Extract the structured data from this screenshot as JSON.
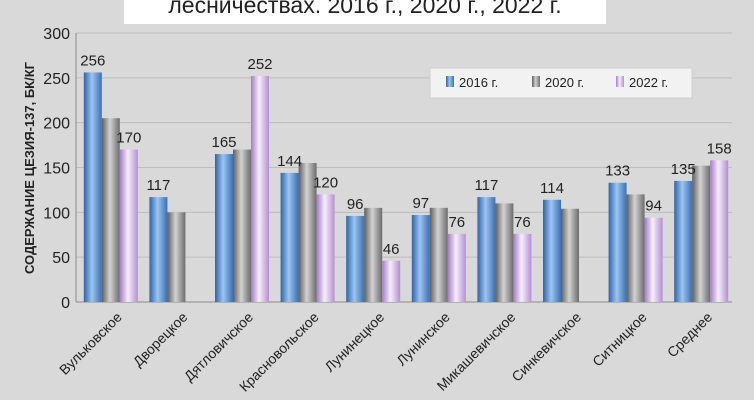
{
  "chart_data": {
    "type": "bar",
    "title": "лесничествах. 2016 г., 2020 г., 2022 г.",
    "ylabel": "СОДЕРЖАНИЕ ЦЕЗИЯ-137, БК/КГ",
    "xlabel": "",
    "ylim": [
      0,
      300
    ],
    "yticks": [
      0,
      50,
      100,
      150,
      200,
      250,
      300
    ],
    "grid": true,
    "legend_position": "top-right",
    "categories": [
      "Вульковское",
      "Дворецкое",
      "Дятловичское",
      "Красновольское",
      "Лунинецкое",
      "Лунинское",
      "Микашевичское",
      "Синкевичское",
      "Ситницкое",
      "Среднее"
    ],
    "series": [
      {
        "name": "2016 г.",
        "color": "#4f86c6",
        "values": [
          256,
          117,
          165,
          144,
          96,
          97,
          117,
          114,
          133,
          135
        ],
        "labels": [
          "256",
          "117",
          "165",
          "144",
          "96",
          "97",
          "117",
          "114",
          "133",
          "135"
        ]
      },
      {
        "name": "2020 г.",
        "color": "#8c8c8c",
        "values": [
          205,
          100,
          170,
          155,
          105,
          105,
          110,
          104,
          120,
          152
        ],
        "labels": [
          "",
          "",
          "",
          "",
          "",
          "",
          "",
          "",
          "",
          ""
        ]
      },
      {
        "name": "2022 г.",
        "color": "#c9a6e0",
        "values": [
          170,
          null,
          252,
          120,
          46,
          76,
          76,
          null,
          94,
          158
        ],
        "labels": [
          "170",
          "",
          "252",
          "120",
          "46",
          "76",
          "76",
          "",
          "94",
          "158"
        ]
      }
    ]
  }
}
